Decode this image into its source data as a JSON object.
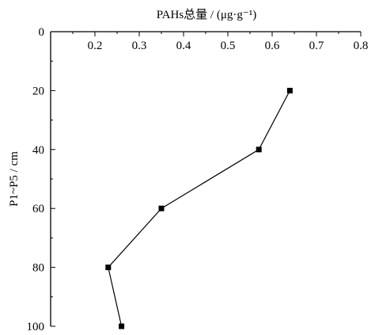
{
  "chart_data": {
    "type": "line",
    "xlabel": "PAHs总量 / (μg·g⁻¹)",
    "ylabel": "P1~P5 / cm",
    "x_axis_position": "top",
    "y_axis_inverted": true,
    "xlim": [
      0.1,
      0.8
    ],
    "ylim": [
      0,
      100
    ],
    "x_ticks": [
      "0.2",
      "0.3",
      "0.4",
      "0.5",
      "0.6",
      "0.7",
      "0.8"
    ],
    "y_ticks": [
      "0",
      "20",
      "40",
      "60",
      "80",
      "100"
    ],
    "series": [
      {
        "x": [
          0.64,
          0.57,
          0.35,
          0.23,
          0.26
        ],
        "y": [
          20,
          40,
          60,
          80,
          100
        ]
      }
    ],
    "grid": false,
    "marker": "square",
    "line_color": "#000000"
  }
}
